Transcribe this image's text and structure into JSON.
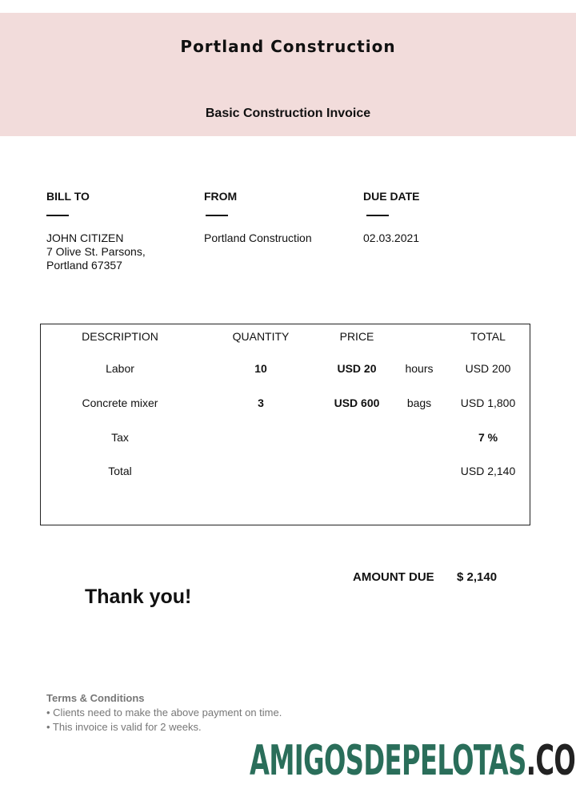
{
  "header": {
    "company": "Portland Construction",
    "subtitle": "Basic Construction Invoice",
    "background": "#f2dcdb"
  },
  "bill_to": {
    "label": "BILL TO",
    "name": "JOHN CITIZEN",
    "address1": "7 Olive St. Parsons,",
    "address2": "Portland 67357"
  },
  "from": {
    "label": "FROM",
    "value": "Portland Construction"
  },
  "due_date": {
    "label": "DUE DATE",
    "value": "02.03.2021"
  },
  "table": {
    "headers": {
      "description": "DESCRIPTION",
      "quantity": "QUANTITY",
      "price": "PRICE",
      "total": "TOTAL"
    },
    "rows": [
      {
        "description": "Labor",
        "quantity": "10",
        "price": "USD 20",
        "unit": "hours",
        "total": "USD 200"
      },
      {
        "description": "Concrete mixer",
        "quantity": "3",
        "price": "USD 600",
        "unit": "bags",
        "total": "USD 1,800"
      },
      {
        "description": "Tax",
        "quantity": "",
        "price": "",
        "unit": "",
        "total": "7 %"
      },
      {
        "description": "Total",
        "quantity": "",
        "price": "",
        "unit": "",
        "total": "USD  2,140"
      }
    ]
  },
  "amount_due": {
    "label": "AMOUNT DUE",
    "value": "$ 2,140"
  },
  "thanks": "Thank you!",
  "terms": {
    "title": "Terms & Conditions",
    "items": [
      "• Clients need to make the above payment on time.",
      "• This invoice is valid for 2 weeks."
    ]
  },
  "watermark": {
    "main": "AMIGOSDEPELOTAS",
    "suffix": ".COM",
    "main_color": "#2a6e5a",
    "suffix_color": "#222222"
  }
}
